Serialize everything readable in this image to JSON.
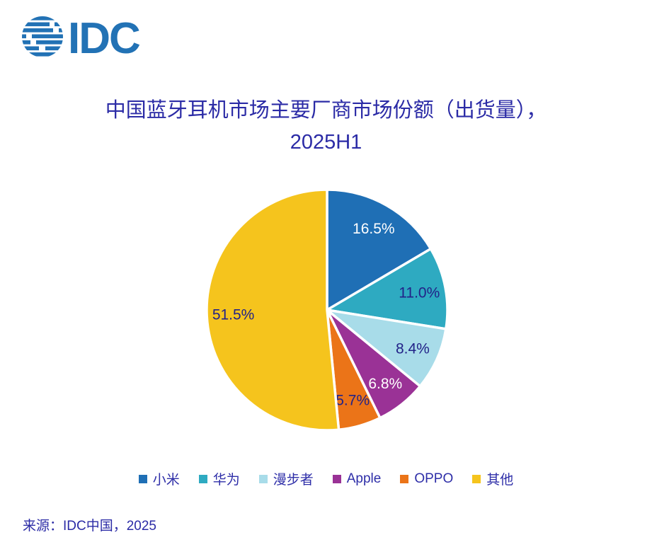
{
  "logo": {
    "text": "IDC",
    "color": "#2272B5"
  },
  "title": {
    "line1": "中国蓝牙耳机市场主要厂商市场份额（出货量），",
    "line2": "2025H1",
    "color": "#2B2BA6"
  },
  "chart_data": {
    "type": "pie",
    "title": "中国蓝牙耳机市场主要厂商市场份额（出货量），2025H1",
    "start_angle_deg": 0,
    "direction": "clockwise",
    "legend_position": "bottom",
    "slice_separator_color": "#FFFFFF",
    "dark_label_color": "#222288",
    "slices": [
      {
        "label": "小米",
        "value": 16.5,
        "data_label": "16.5%",
        "color": "#1F6FB5",
        "label_color": "#FFFFFF"
      },
      {
        "label": "华为",
        "value": 11.0,
        "data_label": "11.0%",
        "color": "#2EAAC1",
        "label_color": "#222288"
      },
      {
        "label": "漫步者",
        "value": 8.4,
        "data_label": "8.4%",
        "color": "#A8DCE9",
        "label_color": "#222288"
      },
      {
        "label": "Apple",
        "value": 6.8,
        "data_label": "6.8%",
        "color": "#9A3296",
        "label_color": "#FFFFFF"
      },
      {
        "label": "OPPO",
        "value": 5.7,
        "data_label": "5.7%",
        "color": "#EB7418",
        "label_color": "#222288"
      },
      {
        "label": "其他",
        "value": 51.5,
        "data_label": "51.5%",
        "color": "#F5C41D",
        "label_color": "#222288"
      }
    ]
  },
  "source": {
    "text": "来源：IDC中国，2025"
  }
}
